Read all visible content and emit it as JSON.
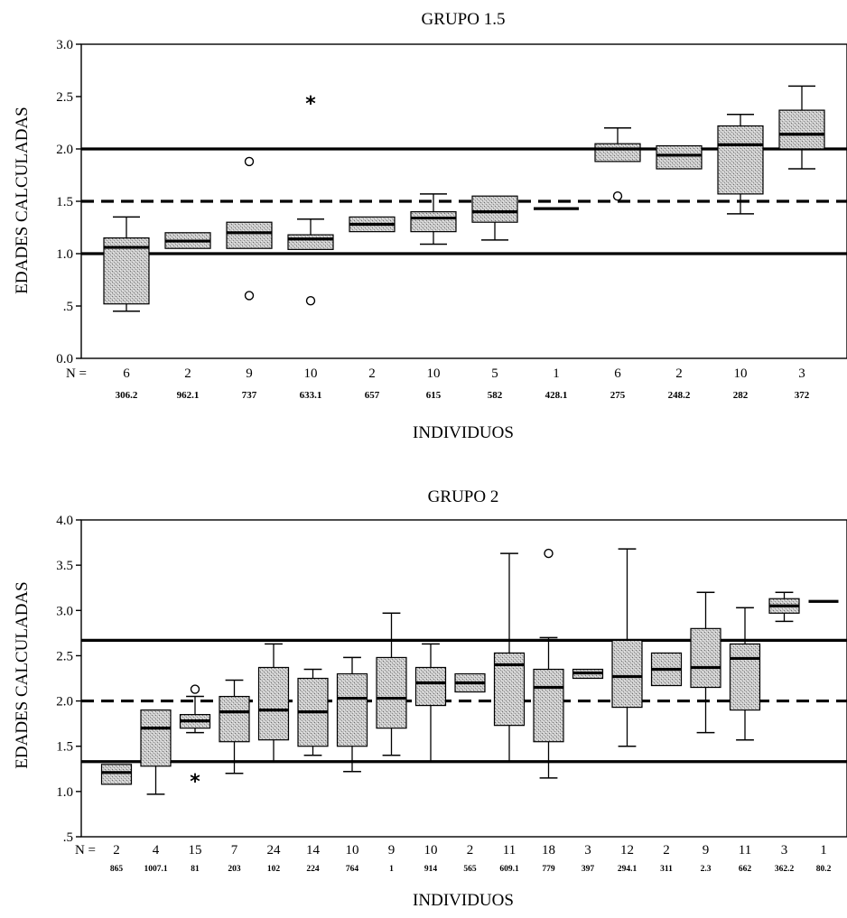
{
  "colors": {
    "box_fill": "#c9c9c9",
    "ink": "#000000",
    "background": "#ffffff"
  },
  "chart_data": [
    {
      "type": "box",
      "title": "GRUPO 1.5",
      "xlabel": "INDIVIDUOS",
      "ylabel": "EDADES CALCULADAS",
      "n_prefix": "N =",
      "ylim": [
        0,
        3
      ],
      "yticks": [
        0,
        0.5,
        1,
        1.5,
        2,
        2.5,
        3
      ],
      "ytick_labels": [
        "0.0",
        ".5",
        "1.0",
        "1.5",
        "2.0",
        "2.5",
        "3.0"
      ],
      "reference_lines": [
        {
          "y": 2.0,
          "style": "solid"
        },
        {
          "y": 1.5,
          "style": "dashed"
        },
        {
          "y": 1.0,
          "style": "solid"
        }
      ],
      "boxes": [
        {
          "id": "306.2",
          "n": "6",
          "whisker_low": 0.45,
          "q1": 0.52,
          "median": 1.06,
          "q3": 1.15,
          "whisker_high": 1.35,
          "outliers": [],
          "extremes": []
        },
        {
          "id": "962.1",
          "n": "2",
          "whisker_low": 1.05,
          "q1": 1.05,
          "median": 1.12,
          "q3": 1.2,
          "whisker_high": 1.2,
          "outliers": [],
          "extremes": []
        },
        {
          "id": "737",
          "n": "9",
          "whisker_low": 1.05,
          "q1": 1.05,
          "median": 1.2,
          "q3": 1.3,
          "whisker_high": 1.3,
          "outliers": [
            1.88,
            0.6
          ],
          "extremes": []
        },
        {
          "id": "633.1",
          "n": "10",
          "whisker_low": 1.04,
          "q1": 1.04,
          "median": 1.14,
          "q3": 1.18,
          "whisker_high": 1.33,
          "outliers": [
            0.55
          ],
          "extremes": [
            2.45
          ]
        },
        {
          "id": "657",
          "n": "2",
          "whisker_low": 1.21,
          "q1": 1.21,
          "median": 1.28,
          "q3": 1.35,
          "whisker_high": 1.35,
          "outliers": [],
          "extremes": []
        },
        {
          "id": "615",
          "n": "10",
          "whisker_low": 1.09,
          "q1": 1.21,
          "median": 1.34,
          "q3": 1.4,
          "whisker_high": 1.57,
          "outliers": [],
          "extremes": []
        },
        {
          "id": "582",
          "n": "5",
          "whisker_low": 1.13,
          "q1": 1.3,
          "median": 1.4,
          "q3": 1.55,
          "whisker_high": 1.55,
          "outliers": [],
          "extremes": []
        },
        {
          "id": "428.1",
          "n": "1",
          "whisker_low": 1.43,
          "q1": 1.43,
          "median": 1.43,
          "q3": 1.43,
          "whisker_high": 1.43,
          "outliers": [],
          "extremes": []
        },
        {
          "id": "275",
          "n": "6",
          "whisker_low": 1.88,
          "q1": 1.88,
          "median": 2.0,
          "q3": 2.05,
          "whisker_high": 2.2,
          "outliers": [
            1.55
          ],
          "extremes": []
        },
        {
          "id": "248.2",
          "n": "2",
          "whisker_low": 1.81,
          "q1": 1.81,
          "median": 1.94,
          "q3": 2.03,
          "whisker_high": 2.03,
          "outliers": [],
          "extremes": []
        },
        {
          "id": "282",
          "n": "10",
          "whisker_low": 1.38,
          "q1": 1.57,
          "median": 2.04,
          "q3": 2.22,
          "whisker_high": 2.33,
          "outliers": [],
          "extremes": []
        },
        {
          "id": "372",
          "n": "3",
          "whisker_low": 1.81,
          "q1": 2.0,
          "median": 2.14,
          "q3": 2.37,
          "whisker_high": 2.6,
          "outliers": [],
          "extremes": []
        }
      ]
    },
    {
      "type": "box",
      "title": "GRUPO 2",
      "xlabel": "INDIVIDUOS",
      "ylabel": "EDADES CALCULADAS",
      "n_prefix": "N =",
      "ylim": [
        0.5,
        4
      ],
      "yticks": [
        0.5,
        1,
        1.5,
        2,
        2.5,
        3,
        3.5,
        4
      ],
      "ytick_labels": [
        ".5",
        "1.0",
        "1.5",
        "2.0",
        "2.5",
        "3.0",
        "3.5",
        "4.0"
      ],
      "reference_lines": [
        {
          "y": 2.67,
          "style": "solid"
        },
        {
          "y": 2.0,
          "style": "dashed"
        },
        {
          "y": 1.33,
          "style": "solid"
        }
      ],
      "boxes": [
        {
          "id": "865",
          "n": "2",
          "whisker_low": 1.08,
          "q1": 1.08,
          "median": 1.21,
          "q3": 1.3,
          "whisker_high": 1.3,
          "outliers": [],
          "extremes": []
        },
        {
          "id": "1007.1",
          "n": "4",
          "whisker_low": 0.97,
          "q1": 1.28,
          "median": 1.7,
          "q3": 1.9,
          "whisker_high": 1.9,
          "outliers": [],
          "extremes": []
        },
        {
          "id": "81",
          "n": "15",
          "whisker_low": 1.65,
          "q1": 1.7,
          "median": 1.78,
          "q3": 1.85,
          "whisker_high": 2.05,
          "outliers": [
            2.13
          ],
          "extremes": [
            1.13
          ]
        },
        {
          "id": "203",
          "n": "7",
          "whisker_low": 1.2,
          "q1": 1.55,
          "median": 1.88,
          "q3": 2.05,
          "whisker_high": 2.23,
          "outliers": [],
          "extremes": []
        },
        {
          "id": "102",
          "n": "24",
          "whisker_low": 1.33,
          "q1": 1.57,
          "median": 1.9,
          "q3": 2.37,
          "whisker_high": 2.63,
          "outliers": [],
          "extremes": []
        },
        {
          "id": "224",
          "n": "14",
          "whisker_low": 1.4,
          "q1": 1.5,
          "median": 1.88,
          "q3": 2.25,
          "whisker_high": 2.35,
          "outliers": [],
          "extremes": []
        },
        {
          "id": "764",
          "n": "10",
          "whisker_low": 1.22,
          "q1": 1.5,
          "median": 2.03,
          "q3": 2.3,
          "whisker_high": 2.48,
          "outliers": [],
          "extremes": []
        },
        {
          "id": "1",
          "n": "9",
          "whisker_low": 1.4,
          "q1": 1.7,
          "median": 2.03,
          "q3": 2.48,
          "whisker_high": 2.97,
          "outliers": [],
          "extremes": []
        },
        {
          "id": "914",
          "n": "10",
          "whisker_low": 1.33,
          "q1": 1.95,
          "median": 2.2,
          "q3": 2.37,
          "whisker_high": 2.63,
          "outliers": [],
          "extremes": []
        },
        {
          "id": "565",
          "n": "2",
          "whisker_low": 2.1,
          "q1": 2.1,
          "median": 2.2,
          "q3": 2.3,
          "whisker_high": 2.3,
          "outliers": [],
          "extremes": []
        },
        {
          "id": "609.1",
          "n": "11",
          "whisker_low": 1.33,
          "q1": 1.73,
          "median": 2.4,
          "q3": 2.53,
          "whisker_high": 3.63,
          "outliers": [],
          "extremes": []
        },
        {
          "id": "779",
          "n": "18",
          "whisker_low": 1.15,
          "q1": 1.55,
          "median": 2.15,
          "q3": 2.35,
          "whisker_high": 2.7,
          "outliers": [
            3.63
          ],
          "extremes": []
        },
        {
          "id": "397",
          "n": "3",
          "whisker_low": 2.25,
          "q1": 2.25,
          "median": 2.31,
          "q3": 2.35,
          "whisker_high": 2.35,
          "outliers": [],
          "extremes": []
        },
        {
          "id": "294.1",
          "n": "12",
          "whisker_low": 1.5,
          "q1": 1.93,
          "median": 2.27,
          "q3": 2.67,
          "whisker_high": 3.68,
          "outliers": [],
          "extremes": []
        },
        {
          "id": "311",
          "n": "2",
          "whisker_low": 2.17,
          "q1": 2.17,
          "median": 2.35,
          "q3": 2.53,
          "whisker_high": 2.53,
          "outliers": [],
          "extremes": []
        },
        {
          "id": "2.3",
          "n": "9",
          "whisker_low": 1.65,
          "q1": 2.15,
          "median": 2.37,
          "q3": 2.8,
          "whisker_high": 3.2,
          "outliers": [],
          "extremes": []
        },
        {
          "id": "662",
          "n": "11",
          "whisker_low": 1.57,
          "q1": 1.9,
          "median": 2.47,
          "q3": 2.63,
          "whisker_high": 3.03,
          "outliers": [],
          "extremes": []
        },
        {
          "id": "362.2",
          "n": "3",
          "whisker_low": 2.88,
          "q1": 2.97,
          "median": 3.05,
          "q3": 3.13,
          "whisker_high": 3.2,
          "outliers": [],
          "extremes": []
        },
        {
          "id": "80.2",
          "n": "1",
          "whisker_low": 3.1,
          "q1": 3.1,
          "median": 3.1,
          "q3": 3.1,
          "whisker_high": 3.1,
          "outliers": [],
          "extremes": []
        }
      ]
    }
  ]
}
